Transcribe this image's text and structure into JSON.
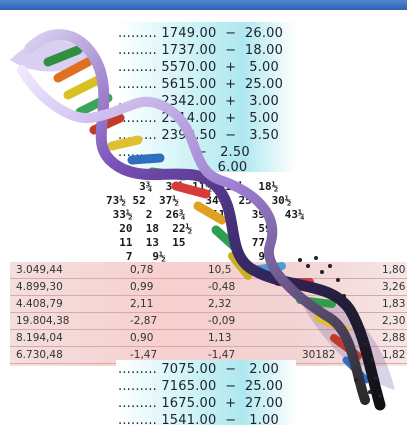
{
  "image": {
    "subject": "",
    "colors": {
      "top_bar": "#3a6fc2",
      "ticker_band": "#aee8ee",
      "table_band": "#f7cfcf",
      "helix_purple": "#6b3fa0"
    }
  },
  "ticker_top": [
    "......... 1749.00  −  26.00",
    "......... 1737.00  −  18.00",
    "......... 5570.00  +   5.00",
    "......... 5615.00  +  25.00",
    "......... 2342.00  +   3.00",
    "......... 2314.00  +   5.00",
    "......... 2390.50  −   3.50",
    "........          −   2.50",
    "                       6.00"
  ],
  "fractions": [
    "     3¾  30¼ 11½  14¼  18½",
    "73½ 52  37½    34¼  25¼  30½",
    " 33½  2  26¾    11    39   43¼",
    "  20  18  22½          59",
    "  11  13  15          77",
    "   7   9½              97"
  ],
  "table": {
    "rows": [
      [
        "3.049,44",
        "0,78",
        "10,5",
        "1,80"
      ],
      [
        "4.899,30",
        "0,99",
        "-0,48",
        "3,26"
      ],
      [
        "4.408,79",
        "2,11",
        "2,32",
        "1,83"
      ],
      [
        "19.804,38",
        "-2,87",
        "-0,09",
        "2,30"
      ],
      [
        "8.194,04",
        "0,90",
        "1,13",
        "2,88"
      ],
      [
        "6.730,48",
        "-1,47",
        "-1,47",
        "30182",
        "1,82"
      ]
    ]
  },
  "ticker_bottom": [
    "......... 7075.00  −   2.00",
    "......... 7165.00  −  25.00",
    "......... 1675.00  +  27.00",
    "......... 1541.00  −   1.00"
  ]
}
